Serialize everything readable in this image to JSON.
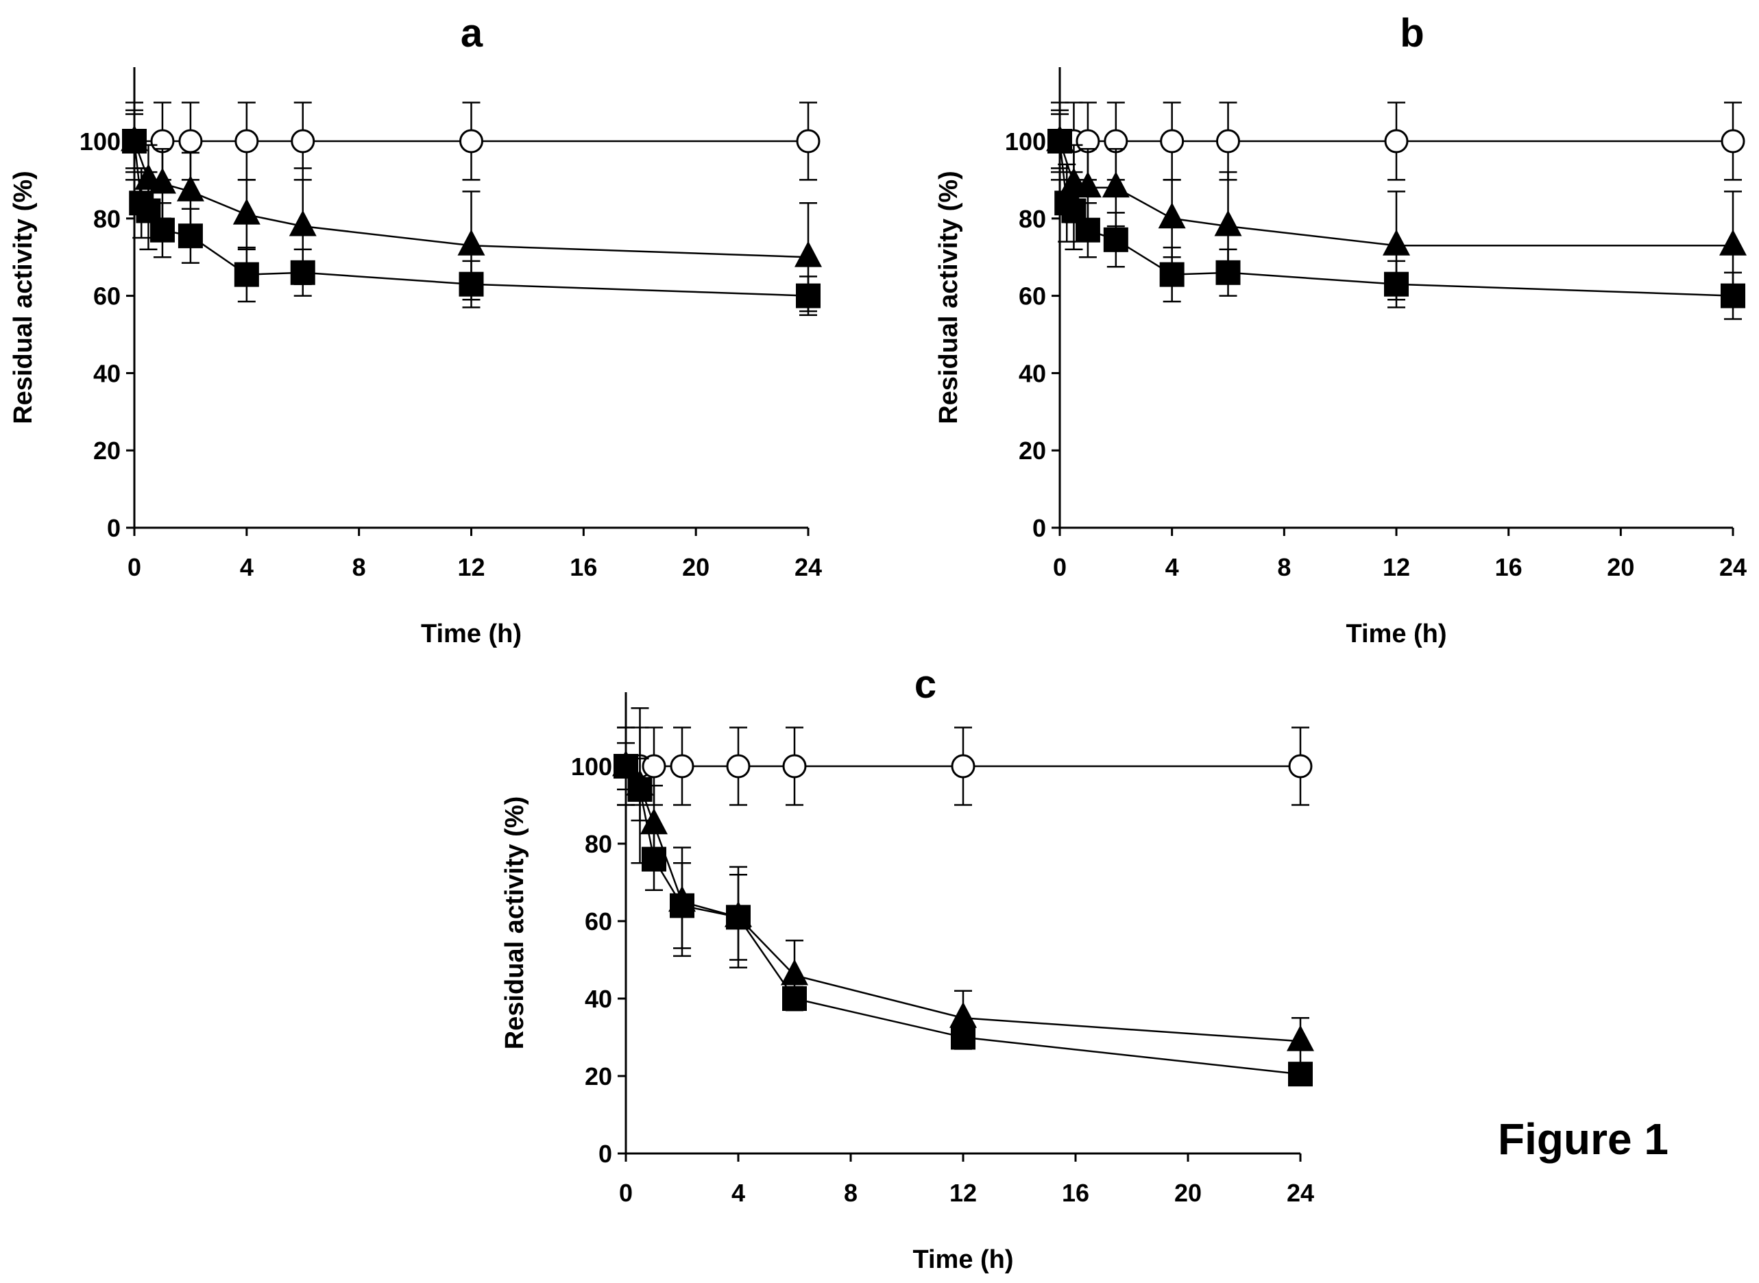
{
  "figure_label": "Figure 1",
  "chart_data": [
    {
      "type": "line",
      "title": "a",
      "xlabel": "Time (h)",
      "ylabel": "Residual activity (%)",
      "xlim": [
        0,
        24
      ],
      "ylim": [
        0,
        100
      ],
      "xticks": [
        0,
        4,
        8,
        12,
        16,
        20,
        24
      ],
      "yticks": [
        0,
        20,
        40,
        60,
        80,
        100
      ],
      "grid": false,
      "legend": "none",
      "series": [
        {
          "marker": "open-circle",
          "x": [
            0,
            1,
            2,
            4,
            6,
            12,
            24
          ],
          "y": [
            100,
            100,
            100,
            100,
            100,
            100,
            100
          ],
          "err": [
            10,
            10,
            10,
            10,
            10,
            10,
            10
          ]
        },
        {
          "marker": "filled-triangle",
          "x": [
            0,
            0.5,
            1,
            2,
            4,
            6,
            12,
            24
          ],
          "y": [
            100,
            90,
            89,
            87,
            81,
            78,
            73,
            70
          ],
          "err": [
            7,
            9,
            9,
            10,
            9,
            15,
            14,
            14
          ]
        },
        {
          "marker": "filled-square",
          "x": [
            0,
            0.25,
            0.5,
            1,
            2,
            4,
            6,
            12,
            24
          ],
          "y": [
            100,
            84,
            82,
            77,
            75.5,
            65.5,
            66,
            63,
            60
          ],
          "err": [
            8,
            9,
            10,
            7,
            7,
            7,
            6,
            6,
            5
          ]
        }
      ]
    },
    {
      "type": "line",
      "title": "b",
      "xlabel": "Time (h)",
      "ylabel": "Residual activity (%)",
      "xlim": [
        0,
        24
      ],
      "ylim": [
        0,
        100
      ],
      "xticks": [
        0,
        4,
        8,
        12,
        16,
        20,
        24
      ],
      "yticks": [
        0,
        20,
        40,
        60,
        80,
        100
      ],
      "grid": false,
      "legend": "none",
      "series": [
        {
          "marker": "open-circle",
          "x": [
            0,
            0.5,
            1,
            2,
            4,
            6,
            12,
            24
          ],
          "y": [
            100,
            100,
            100,
            100,
            100,
            100,
            100,
            100
          ],
          "err": [
            10,
            10,
            10,
            10,
            10,
            10,
            10,
            10
          ]
        },
        {
          "marker": "filled-triangle",
          "x": [
            0,
            0.5,
            1,
            2,
            4,
            6,
            12,
            24
          ],
          "y": [
            100,
            89,
            88,
            88,
            80,
            78,
            73,
            73
          ],
          "err": [
            8,
            10,
            10,
            10,
            10,
            14,
            14,
            14
          ]
        },
        {
          "marker": "filled-square",
          "x": [
            0,
            0.25,
            0.5,
            1,
            2,
            4,
            6,
            12,
            24
          ],
          "y": [
            100,
            84,
            82,
            77,
            74.5,
            65.5,
            66,
            63,
            60
          ],
          "err": [
            7,
            10,
            10,
            7,
            7,
            7,
            6,
            6,
            6
          ]
        }
      ]
    },
    {
      "type": "line",
      "title": "c",
      "xlabel": "Time (h)",
      "ylabel": "Residual activity (%)",
      "xlim": [
        0,
        24
      ],
      "ylim": [
        0,
        100
      ],
      "xticks": [
        0,
        4,
        8,
        12,
        16,
        20,
        24
      ],
      "yticks": [
        0,
        20,
        40,
        60,
        80,
        100
      ],
      "grid": false,
      "legend": "none",
      "series": [
        {
          "marker": "open-circle",
          "x": [
            0,
            0.5,
            1,
            2,
            4,
            6,
            12,
            24
          ],
          "y": [
            100,
            100,
            100,
            100,
            100,
            100,
            100,
            100
          ],
          "err": [
            10,
            10,
            10,
            10,
            10,
            10,
            10,
            10
          ]
        },
        {
          "marker": "filled-triangle",
          "x": [
            0,
            0.5,
            1,
            2,
            4,
            6,
            12,
            24
          ],
          "y": [
            100,
            95,
            85,
            65,
            61,
            46,
            35,
            29
          ],
          "err": [
            10,
            20,
            10,
            14,
            11,
            9,
            7,
            6
          ]
        },
        {
          "marker": "filled-square",
          "x": [
            0,
            0.5,
            1,
            2,
            4,
            6,
            12,
            24
          ],
          "y": [
            100,
            94,
            76,
            64,
            61,
            40,
            30,
            20.5
          ],
          "err": [
            6,
            8,
            8,
            11,
            13,
            3,
            3,
            2
          ]
        }
      ]
    }
  ]
}
